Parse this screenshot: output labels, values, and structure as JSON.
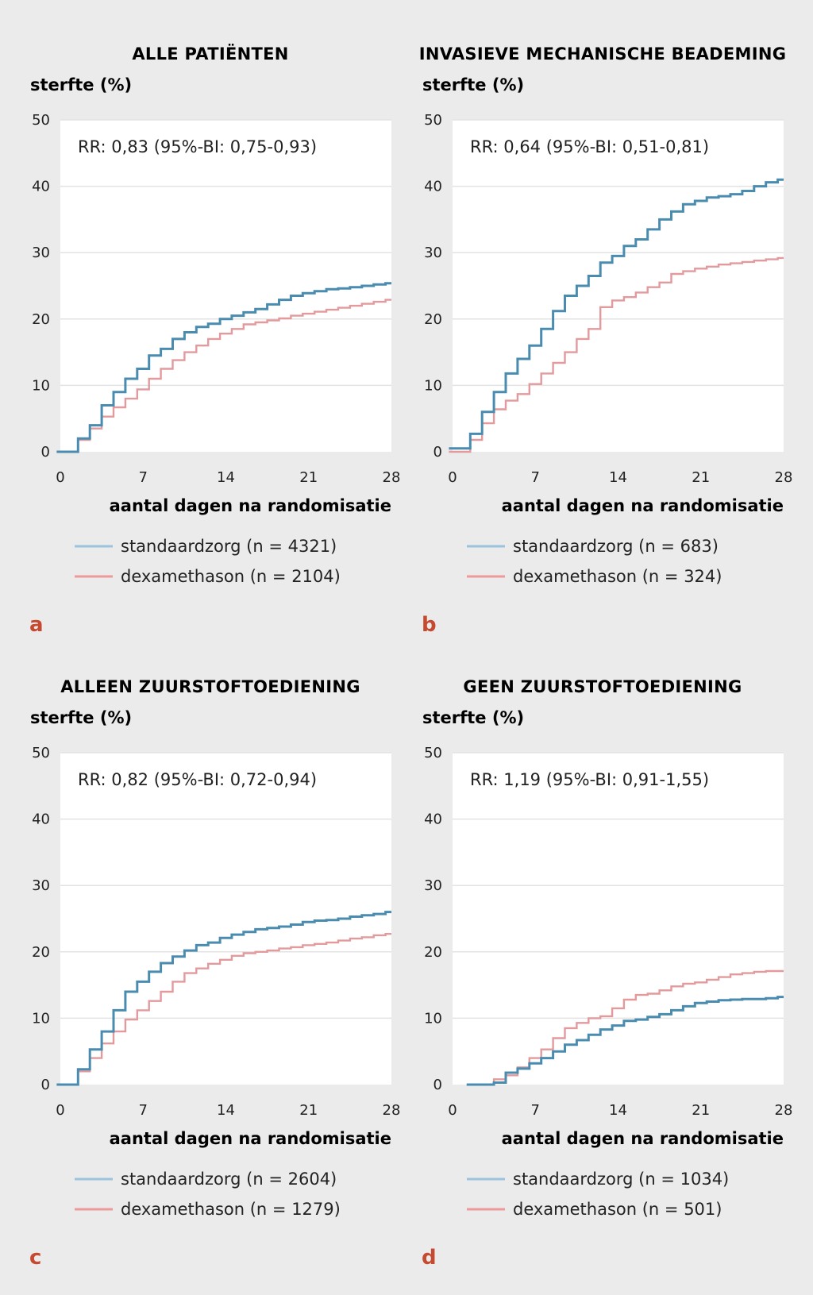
{
  "colors": {
    "standard": "#4a8caf",
    "standard_legend": "#9cc3de",
    "dexa": "#e29a9d",
    "dexa_legend": "#ec9a9a",
    "letter": "#c64a30",
    "grid": "#e3e3e3",
    "plot_bg": "#ffffff",
    "page_bg": "#ebebeb"
  },
  "chart_data": [
    {
      "type": "line",
      "letter": "a",
      "title": "ALLE PATIËNTEN",
      "ylabel": "sterfte (%)",
      "xlabel": "aantal dagen na randomisatie",
      "xlim": [
        0,
        28
      ],
      "ylim": [
        0,
        50
      ],
      "xticks": [
        "0",
        "7",
        "14",
        "21",
        "28"
      ],
      "yticks": [
        "0",
        "10",
        "20",
        "30",
        "40",
        "50"
      ],
      "annotation": "RR: 0,83 (95%-BI: 0,75-0,93)",
      "series": [
        {
          "name": "standaardzorg (n = 4321)",
          "x": [
            0.5,
            1.5,
            2.5,
            3.5,
            4.5,
            5.5,
            6.5,
            7.5,
            8.5,
            9.5,
            10.5,
            11.5,
            12.5,
            13.5,
            14.5,
            15.5,
            16.5,
            17.5,
            18.5,
            19.5,
            20.5,
            21.5,
            22.5,
            23.5,
            24.5,
            25.5,
            26.5,
            27.5,
            28
          ],
          "y": [
            0,
            2,
            4,
            7,
            9,
            11,
            12.5,
            14.5,
            15.5,
            17,
            18,
            18.8,
            19.3,
            20,
            20.5,
            21,
            21.5,
            22.2,
            22.9,
            23.5,
            23.9,
            24.2,
            24.5,
            24.6,
            24.8,
            25,
            25.2,
            25.4,
            25.4
          ]
        },
        {
          "name": "dexamethason (n = 2104)",
          "x": [
            0.5,
            1.5,
            2.5,
            3.5,
            4.5,
            5.5,
            6.5,
            7.5,
            8.5,
            9.5,
            10.5,
            11.5,
            12.5,
            13.5,
            14.5,
            15.5,
            16.5,
            17.5,
            18.5,
            19.5,
            20.5,
            21.5,
            22.5,
            23.5,
            24.5,
            25.5,
            26.5,
            27.5,
            28
          ],
          "y": [
            0,
            1.8,
            3.5,
            5.3,
            6.7,
            8,
            9.4,
            11,
            12.5,
            13.8,
            15,
            16,
            17,
            17.8,
            18.5,
            19.2,
            19.5,
            19.8,
            20.1,
            20.5,
            20.8,
            21.1,
            21.4,
            21.7,
            22,
            22.3,
            22.6,
            22.9,
            22.9
          ]
        }
      ]
    },
    {
      "type": "line",
      "letter": "b",
      "title": "INVASIEVE MECHANISCHE BEADEMING",
      "ylabel": "sterfte (%)",
      "xlabel": "aantal dagen na randomisatie",
      "xlim": [
        0,
        28
      ],
      "ylim": [
        0,
        50
      ],
      "xticks": [
        "0",
        "7",
        "14",
        "21",
        "28"
      ],
      "yticks": [
        "0",
        "10",
        "20",
        "30",
        "40",
        "50"
      ],
      "annotation": "RR: 0,64 (95%-BI: 0,51-0,81)",
      "series": [
        {
          "name": "standaardzorg (n = 683)",
          "x": [
            0.5,
            1.5,
            2.5,
            3.5,
            4.5,
            5.5,
            6.5,
            7.5,
            8.5,
            9.5,
            10.5,
            11.5,
            12.5,
            13.5,
            14.5,
            15.5,
            16.5,
            17.5,
            18.5,
            19.5,
            20.5,
            21.5,
            22.5,
            23.5,
            24.5,
            25.5,
            26.5,
            27.5,
            28
          ],
          "y": [
            0.5,
            2.7,
            6,
            9,
            11.8,
            14,
            16,
            18.5,
            21.2,
            23.5,
            25,
            26.5,
            28.5,
            29.5,
            31,
            32,
            33.5,
            35,
            36.2,
            37.3,
            37.8,
            38.3,
            38.5,
            38.8,
            39.3,
            40,
            40.6,
            41,
            41
          ]
        },
        {
          "name": "dexamethason (n = 324)",
          "x": [
            0.5,
            1.5,
            2.5,
            3.5,
            4.5,
            5.5,
            6.5,
            7.5,
            8.5,
            9.5,
            10.5,
            11.5,
            12.5,
            13.5,
            14.5,
            15.5,
            16.5,
            17.5,
            18.5,
            19.5,
            20.5,
            21.5,
            22.5,
            23.5,
            24.5,
            25.5,
            26.5,
            27.5,
            28
          ],
          "y": [
            0,
            1.8,
            4.3,
            6.4,
            7.7,
            8.7,
            10.2,
            11.8,
            13.4,
            15,
            17,
            18.5,
            21.8,
            22.8,
            23.3,
            24,
            24.8,
            25.5,
            26.8,
            27.2,
            27.6,
            27.9,
            28.2,
            28.4,
            28.6,
            28.8,
            29,
            29.2,
            29.2
          ]
        }
      ]
    },
    {
      "type": "line",
      "letter": "c",
      "title": "ALLEEN ZUURSTOFTOEDIENING",
      "ylabel": "sterfte (%)",
      "xlabel": "aantal dagen na randomisatie",
      "xlim": [
        0,
        28
      ],
      "ylim": [
        0,
        50
      ],
      "xticks": [
        "0",
        "7",
        "14",
        "21",
        "28"
      ],
      "yticks": [
        "0",
        "10",
        "20",
        "30",
        "40",
        "50"
      ],
      "annotation": "RR: 0,82 (95%-BI: 0,72-0,94)",
      "series": [
        {
          "name": "standaardzorg (n = 2604)",
          "x": [
            0.5,
            1.5,
            2.5,
            3.5,
            4.5,
            5.5,
            6.5,
            7.5,
            8.5,
            9.5,
            10.5,
            11.5,
            12.5,
            13.5,
            14.5,
            15.5,
            16.5,
            17.5,
            18.5,
            19.5,
            20.5,
            21.5,
            22.5,
            23.5,
            24.5,
            25.5,
            26.5,
            27.5,
            28
          ],
          "y": [
            0,
            2.3,
            5.3,
            8,
            11.2,
            14,
            15.5,
            17,
            18.3,
            19.3,
            20.2,
            21,
            21.4,
            22.1,
            22.6,
            23,
            23.4,
            23.6,
            23.8,
            24.1,
            24.5,
            24.7,
            24.8,
            25,
            25.3,
            25.5,
            25.7,
            26,
            26
          ]
        },
        {
          "name": "dexamethason (n = 1279)",
          "x": [
            0.5,
            1.5,
            2.5,
            3.5,
            4.5,
            5.5,
            6.5,
            7.5,
            8.5,
            9.5,
            10.5,
            11.5,
            12.5,
            13.5,
            14.5,
            15.5,
            16.5,
            17.5,
            18.5,
            19.5,
            20.5,
            21.5,
            22.5,
            23.5,
            24.5,
            25.5,
            26.5,
            27.5,
            28
          ],
          "y": [
            0,
            2,
            4,
            6.2,
            8,
            9.8,
            11.2,
            12.6,
            14,
            15.5,
            16.8,
            17.5,
            18.2,
            18.8,
            19.4,
            19.8,
            20,
            20.2,
            20.5,
            20.7,
            21,
            21.2,
            21.4,
            21.7,
            22,
            22.2,
            22.5,
            22.7,
            22.7
          ]
        }
      ]
    },
    {
      "type": "line",
      "letter": "d",
      "title": "GEEN ZUURSTOFTOEDIENING",
      "ylabel": "sterfte (%)",
      "xlabel": "aantal dagen na randomisatie",
      "xlim": [
        0,
        28
      ],
      "ylim": [
        0,
        50
      ],
      "xticks": [
        "0",
        "7",
        "14",
        "21",
        "28"
      ],
      "yticks": [
        "0",
        "10",
        "20",
        "30",
        "40",
        "50"
      ],
      "annotation": "RR: 1,19 (95%-BI: 0,91-1,55)",
      "series": [
        {
          "name": "standaardzorg (n = 1034)",
          "x": [
            2,
            3.5,
            4.5,
            5.5,
            6.5,
            7.5,
            8.5,
            9.5,
            10.5,
            11.5,
            12.5,
            13.5,
            14.5,
            15.5,
            16.5,
            17.5,
            18.5,
            19.5,
            20.5,
            21.5,
            22.5,
            23.5,
            24.5,
            25.5,
            26.5,
            27.5,
            28
          ],
          "y": [
            0,
            0.3,
            1.8,
            2.4,
            3.2,
            4,
            5,
            6,
            6.7,
            7.5,
            8.3,
            8.9,
            9.6,
            9.8,
            10.2,
            10.6,
            11.2,
            11.8,
            12.3,
            12.5,
            12.7,
            12.8,
            12.9,
            12.9,
            13,
            13.2,
            13.2
          ]
        },
        {
          "name": "dexamethason (n = 501)",
          "x": [
            2,
            3.5,
            4.5,
            5.5,
            6.5,
            7.5,
            8.5,
            9.5,
            10.5,
            11.5,
            12.5,
            13.5,
            14.5,
            15.5,
            16.5,
            17.5,
            18.5,
            19.5,
            20.5,
            21.5,
            22.5,
            23.5,
            24.5,
            25.5,
            26.5,
            27.5,
            28
          ],
          "y": [
            0,
            0.8,
            1.4,
            2.6,
            4,
            5.3,
            7,
            8.5,
            9.3,
            10,
            10.3,
            11.5,
            12.8,
            13.5,
            13.7,
            14.2,
            14.8,
            15.2,
            15.4,
            15.8,
            16.2,
            16.6,
            16.8,
            17,
            17.1,
            17.1,
            17.1
          ]
        }
      ]
    }
  ]
}
